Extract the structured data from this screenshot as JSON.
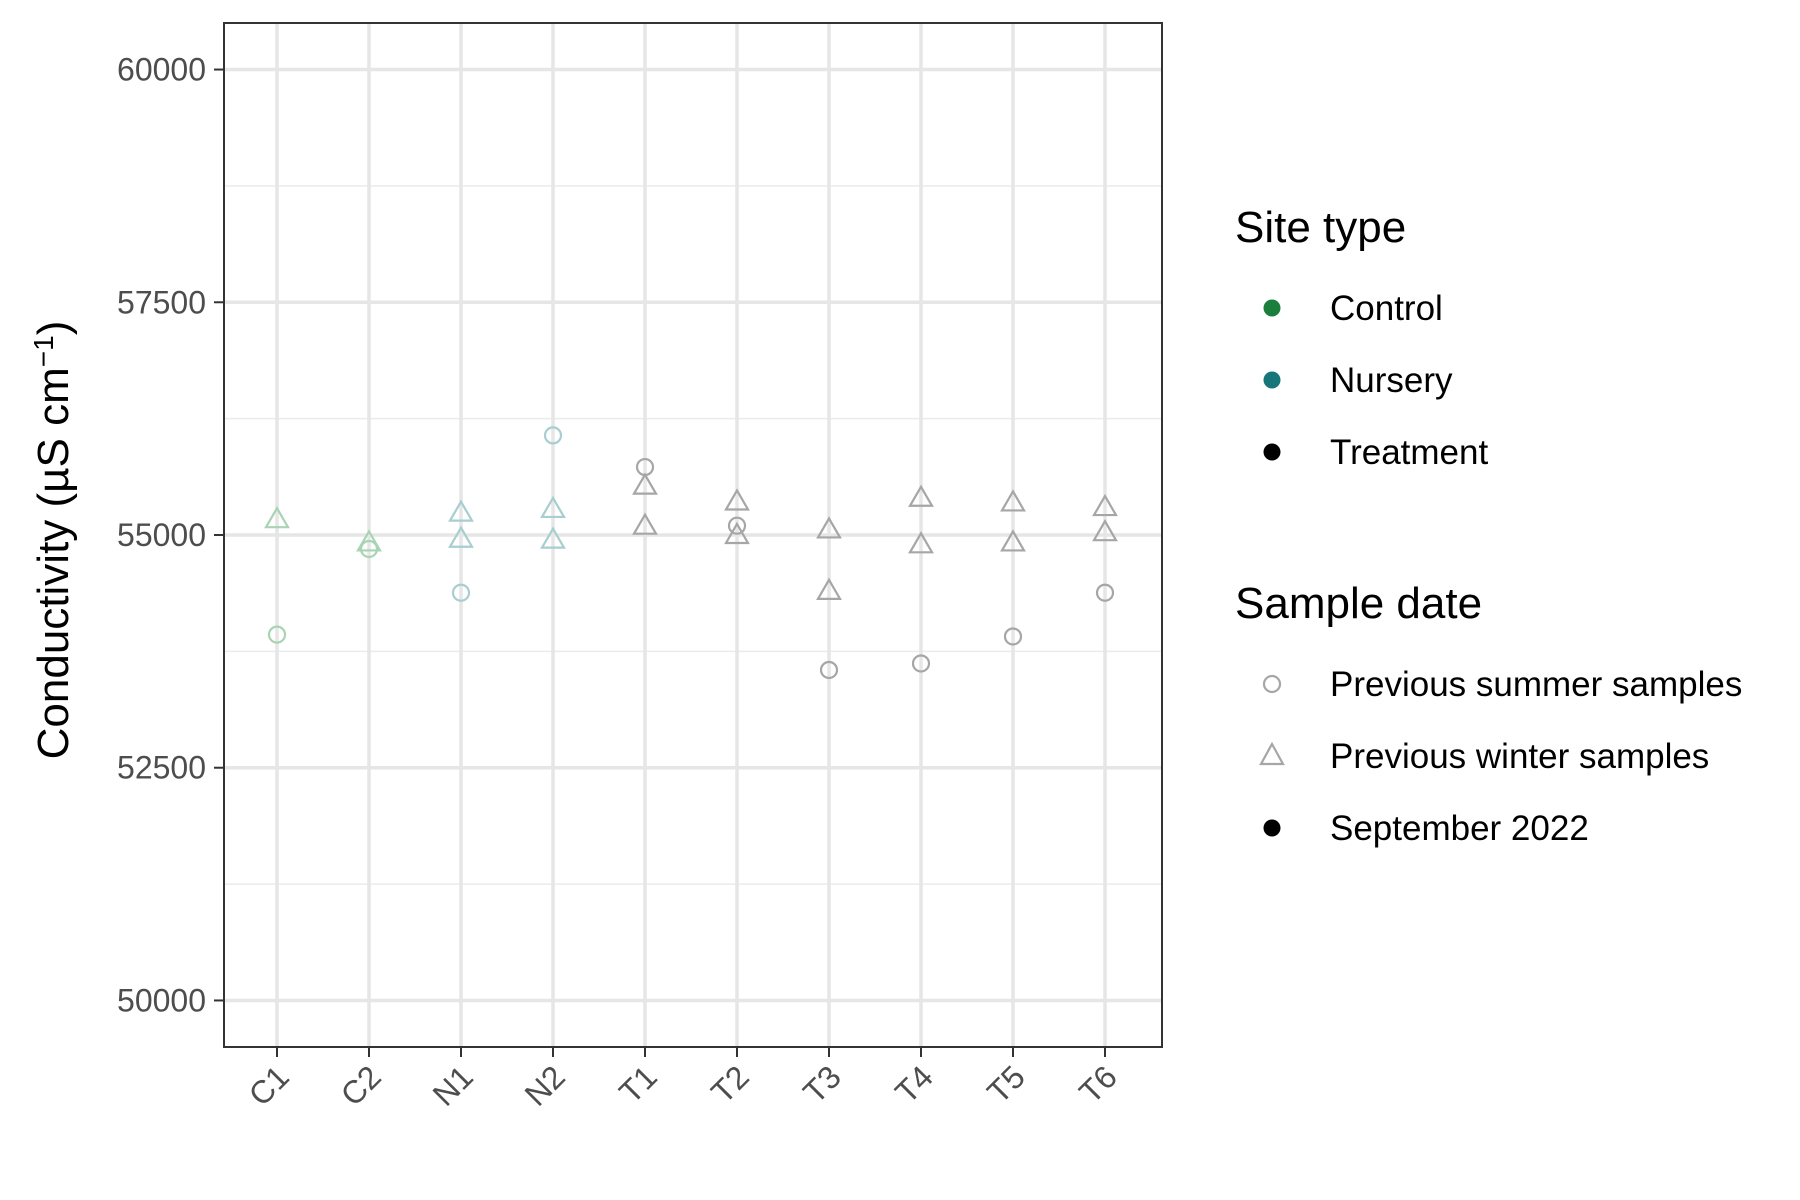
{
  "chart_data": {
    "type": "scatter",
    "title": "",
    "xlabel": "",
    "ylabel": "Conductivity (µS cm",
    "ylabel_sup": "−1",
    "ylabel_close": ")",
    "ylim": [
      49500,
      60500
    ],
    "yticks": [
      50000,
      52500,
      55000,
      57500,
      60000
    ],
    "ytick_labels": [
      "50000",
      "52500",
      "55000",
      "57500",
      "60000"
    ],
    "categories": [
      "C1",
      "C2",
      "N1",
      "N2",
      "T1",
      "T2",
      "T3",
      "T4",
      "T5",
      "T6"
    ],
    "grid": true,
    "legend_placement": "right",
    "colors": {
      "control": "#1a7f3c",
      "nursery": "#16767a",
      "treatment": "#000000"
    },
    "series": [
      {
        "name": "Previous summer samples",
        "shape": "circle",
        "points": [
          {
            "x": "C1",
            "y": 53930,
            "site": "control"
          },
          {
            "x": "C2",
            "y": 54850,
            "site": "control"
          },
          {
            "x": "N1",
            "y": 54380,
            "site": "nursery"
          },
          {
            "x": "N2",
            "y": 56070,
            "site": "nursery"
          },
          {
            "x": "T1",
            "y": 55730,
            "site": "treatment"
          },
          {
            "x": "T2",
            "y": 55100,
            "site": "treatment"
          },
          {
            "x": "T3",
            "y": 53550,
            "site": "treatment"
          },
          {
            "x": "T4",
            "y": 53620,
            "site": "treatment"
          },
          {
            "x": "T5",
            "y": 53910,
            "site": "treatment"
          },
          {
            "x": "T6",
            "y": 54380,
            "site": "treatment"
          }
        ]
      },
      {
        "name": "Previous winter samples",
        "shape": "triangle",
        "points": [
          {
            "x": "C1",
            "y": 55170,
            "site": "control"
          },
          {
            "x": "C2",
            "y": 54920,
            "site": "control"
          },
          {
            "x": "N1",
            "y": 55240,
            "site": "nursery"
          },
          {
            "x": "N1",
            "y": 54960,
            "site": "nursery"
          },
          {
            "x": "N2",
            "y": 55280,
            "site": "nursery"
          },
          {
            "x": "N2",
            "y": 54950,
            "site": "nursery"
          },
          {
            "x": "T1",
            "y": 55530,
            "site": "treatment"
          },
          {
            "x": "T1",
            "y": 55100,
            "site": "treatment"
          },
          {
            "x": "T2",
            "y": 55360,
            "site": "treatment"
          },
          {
            "x": "T2",
            "y": 55000,
            "site": "treatment"
          },
          {
            "x": "T3",
            "y": 55060,
            "site": "treatment"
          },
          {
            "x": "T3",
            "y": 54400,
            "site": "treatment"
          },
          {
            "x": "T4",
            "y": 55400,
            "site": "treatment"
          },
          {
            "x": "T4",
            "y": 54900,
            "site": "treatment"
          },
          {
            "x": "T5",
            "y": 55350,
            "site": "treatment"
          },
          {
            "x": "T5",
            "y": 54920,
            "site": "treatment"
          },
          {
            "x": "T6",
            "y": 55300,
            "site": "treatment"
          },
          {
            "x": "T6",
            "y": 55030,
            "site": "treatment"
          }
        ]
      }
    ],
    "legends": [
      {
        "title": "Site type",
        "items": [
          {
            "label": "Control",
            "site": "control",
            "shape": "dot"
          },
          {
            "label": "Nursery",
            "site": "nursery",
            "shape": "dot"
          },
          {
            "label": "Treatment",
            "site": "treatment",
            "shape": "dot"
          }
        ]
      },
      {
        "title": "Sample date",
        "items": [
          {
            "label": "Previous summer samples",
            "shape": "circle"
          },
          {
            "label": "Previous winter samples",
            "shape": "triangle"
          },
          {
            "label": "September 2022",
            "shape": "dot"
          }
        ]
      }
    ]
  }
}
